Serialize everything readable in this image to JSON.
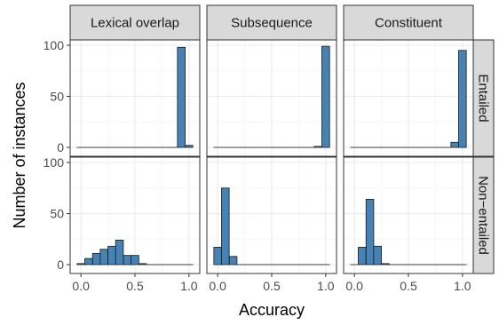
{
  "chart_data": {
    "type": "bar",
    "subtype": "faceted-histogram",
    "xlabel": "Accuracy",
    "ylabel": "Number of instances",
    "column_facets": [
      "Lexical overlap",
      "Subsequence",
      "Constituent"
    ],
    "row_facets": [
      "Entailed",
      "Non−entailed"
    ],
    "x_ticks": [
      "0.0",
      "0.5",
      "1.0"
    ],
    "x_tick_values": [
      0,
      0.5,
      1.0
    ],
    "y_ticks": [
      "0",
      "50",
      "100"
    ],
    "y_tick_values": [
      0,
      50,
      100
    ],
    "xlim": [
      -0.1,
      1.1
    ],
    "ylim": [
      0,
      100
    ],
    "bin_width": 0.0714,
    "grid": true,
    "colors": {
      "bar_fill": "#4682B4",
      "bar_stroke": "#1a1a1a",
      "strip_bg": "#d9d9d9",
      "grid": "#ebebeb"
    },
    "panels": [
      {
        "row": "Entailed",
        "col": "Lexical overlap",
        "bins": [
          {
            "x": 0.0,
            "count": 0
          },
          {
            "x": 0.071,
            "count": 0
          },
          {
            "x": 0.143,
            "count": 0
          },
          {
            "x": 0.214,
            "count": 0
          },
          {
            "x": 0.286,
            "count": 0
          },
          {
            "x": 0.357,
            "count": 0
          },
          {
            "x": 0.429,
            "count": 0
          },
          {
            "x": 0.5,
            "count": 0
          },
          {
            "x": 0.571,
            "count": 0
          },
          {
            "x": 0.643,
            "count": 0
          },
          {
            "x": 0.714,
            "count": 0
          },
          {
            "x": 0.786,
            "count": 0
          },
          {
            "x": 0.857,
            "count": 0
          },
          {
            "x": 0.929,
            "count": 98
          },
          {
            "x": 1.0,
            "count": 2
          }
        ]
      },
      {
        "row": "Entailed",
        "col": "Subsequence",
        "bins": [
          {
            "x": 0.0,
            "count": 0
          },
          {
            "x": 0.071,
            "count": 0
          },
          {
            "x": 0.143,
            "count": 0
          },
          {
            "x": 0.214,
            "count": 0
          },
          {
            "x": 0.286,
            "count": 0
          },
          {
            "x": 0.357,
            "count": 0
          },
          {
            "x": 0.429,
            "count": 0
          },
          {
            "x": 0.5,
            "count": 0
          },
          {
            "x": 0.571,
            "count": 0
          },
          {
            "x": 0.643,
            "count": 0
          },
          {
            "x": 0.714,
            "count": 0
          },
          {
            "x": 0.786,
            "count": 0
          },
          {
            "x": 0.857,
            "count": 0
          },
          {
            "x": 0.929,
            "count": 1
          },
          {
            "x": 1.0,
            "count": 99
          }
        ]
      },
      {
        "row": "Entailed",
        "col": "Constituent",
        "bins": [
          {
            "x": 0.0,
            "count": 0
          },
          {
            "x": 0.071,
            "count": 0
          },
          {
            "x": 0.143,
            "count": 0
          },
          {
            "x": 0.214,
            "count": 0
          },
          {
            "x": 0.286,
            "count": 0
          },
          {
            "x": 0.357,
            "count": 0
          },
          {
            "x": 0.429,
            "count": 0
          },
          {
            "x": 0.5,
            "count": 0
          },
          {
            "x": 0.571,
            "count": 0
          },
          {
            "x": 0.643,
            "count": 0
          },
          {
            "x": 0.714,
            "count": 0
          },
          {
            "x": 0.786,
            "count": 0
          },
          {
            "x": 0.857,
            "count": 0
          },
          {
            "x": 0.929,
            "count": 5
          },
          {
            "x": 1.0,
            "count": 95
          }
        ]
      },
      {
        "row": "Non−entailed",
        "col": "Lexical overlap",
        "bins": [
          {
            "x": 0.0,
            "count": 1
          },
          {
            "x": 0.071,
            "count": 6
          },
          {
            "x": 0.143,
            "count": 11
          },
          {
            "x": 0.214,
            "count": 15
          },
          {
            "x": 0.286,
            "count": 18
          },
          {
            "x": 0.357,
            "count": 24
          },
          {
            "x": 0.429,
            "count": 9
          },
          {
            "x": 0.5,
            "count": 9
          },
          {
            "x": 0.571,
            "count": 1
          },
          {
            "x": 0.643,
            "count": 0
          },
          {
            "x": 0.714,
            "count": 0
          },
          {
            "x": 0.786,
            "count": 0
          },
          {
            "x": 0.857,
            "count": 0
          },
          {
            "x": 0.929,
            "count": 0
          },
          {
            "x": 1.0,
            "count": 0
          }
        ]
      },
      {
        "row": "Non−entailed",
        "col": "Subsequence",
        "bins": [
          {
            "x": 0.0,
            "count": 17
          },
          {
            "x": 0.071,
            "count": 75
          },
          {
            "x": 0.143,
            "count": 8
          },
          {
            "x": 0.214,
            "count": 0
          },
          {
            "x": 0.286,
            "count": 0
          },
          {
            "x": 0.357,
            "count": 0
          },
          {
            "x": 0.429,
            "count": 0
          },
          {
            "x": 0.5,
            "count": 0
          },
          {
            "x": 0.571,
            "count": 0
          },
          {
            "x": 0.643,
            "count": 0
          },
          {
            "x": 0.714,
            "count": 0
          },
          {
            "x": 0.786,
            "count": 0
          },
          {
            "x": 0.857,
            "count": 0
          },
          {
            "x": 0.929,
            "count": 0
          },
          {
            "x": 1.0,
            "count": 0
          }
        ]
      },
      {
        "row": "Non−entailed",
        "col": "Constituent",
        "bins": [
          {
            "x": 0.0,
            "count": 0
          },
          {
            "x": 0.071,
            "count": 17
          },
          {
            "x": 0.143,
            "count": 64
          },
          {
            "x": 0.214,
            "count": 18
          },
          {
            "x": 0.286,
            "count": 1
          },
          {
            "x": 0.357,
            "count": 0
          },
          {
            "x": 0.429,
            "count": 0
          },
          {
            "x": 0.5,
            "count": 0
          },
          {
            "x": 0.571,
            "count": 0
          },
          {
            "x": 0.643,
            "count": 0
          },
          {
            "x": 0.714,
            "count": 0
          },
          {
            "x": 0.786,
            "count": 0
          },
          {
            "x": 0.857,
            "count": 0
          },
          {
            "x": 0.929,
            "count": 0
          },
          {
            "x": 1.0,
            "count": 0
          }
        ]
      }
    ]
  }
}
